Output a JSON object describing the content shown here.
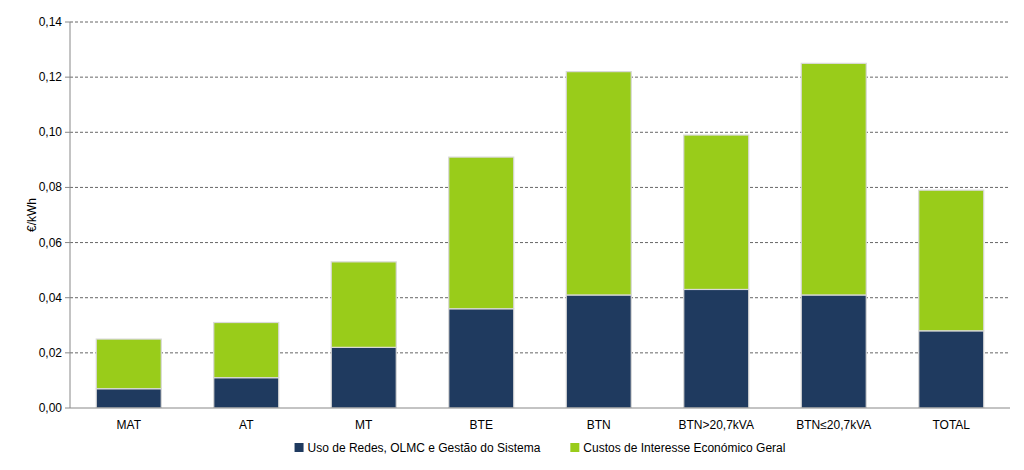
{
  "chart_data": {
    "type": "bar",
    "stacked": true,
    "grid": true,
    "legend": "bottom",
    "y_label": "€/kWh",
    "categories": [
      "MAT",
      "AT",
      "MT",
      "BTE",
      "BTN",
      "BTN>20,7kVA",
      "BTN≤20,7kVA",
      "TOTAL"
    ],
    "series": [
      {
        "name": "Uso de Redes, OLMC e Gestão do Sistema",
        "color": "#1f3a5f",
        "values": [
          0.007,
          0.011,
          0.022,
          0.036,
          0.041,
          0.043,
          0.041,
          0.028
        ]
      },
      {
        "name": "Custos de Interesse Económico Geral",
        "color": "#99cc1a",
        "values": [
          0.018,
          0.02,
          0.031,
          0.055,
          0.081,
          0.056,
          0.084,
          0.051
        ]
      }
    ],
    "ylim": [
      0,
      0.14
    ],
    "yticks": [
      {
        "value": 0,
        "label": "0,00"
      },
      {
        "value": 0.02,
        "label": "0,02"
      },
      {
        "value": 0.04,
        "label": "0,04"
      },
      {
        "value": 0.06,
        "label": "0,06"
      },
      {
        "value": 0.08,
        "label": "0,08"
      },
      {
        "value": 0.1,
        "label": "0,10"
      },
      {
        "value": 0.12,
        "label": "0,12"
      },
      {
        "value": 0.14,
        "label": "0,14"
      }
    ]
  }
}
